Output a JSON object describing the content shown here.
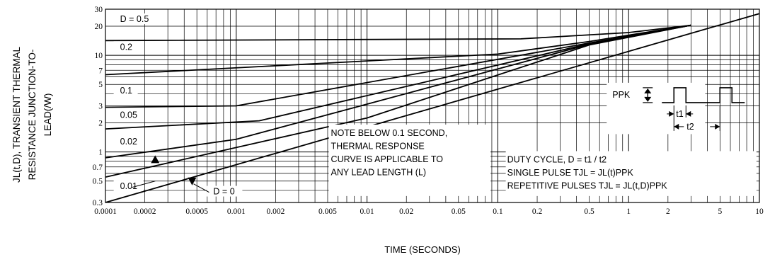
{
  "chart_data": {
    "type": "line",
    "xscale": "log",
    "yscale": "log",
    "xlim": [
      0.0001,
      10
    ],
    "ylim": [
      0.3,
      30
    ],
    "grid": true,
    "xlabel": "TIME (SECONDS)",
    "ylabel_lines": [
      "JL(t,D), TRANSIENT THERMAL",
      "RESISTANCE JUNCTION-TO-",
      "LEAD(/W)"
    ],
    "x_ticks": [
      {
        "v": 0.0001,
        "label": "0.0001"
      },
      {
        "v": 0.0002,
        "label": "0.0002"
      },
      {
        "v": 0.0005,
        "label": "0.0005"
      },
      {
        "v": 0.001,
        "label": "0.001"
      },
      {
        "v": 0.002,
        "label": "0.002"
      },
      {
        "v": 0.005,
        "label": "0.005"
      },
      {
        "v": 0.01,
        "label": "0.01"
      },
      {
        "v": 0.02,
        "label": "0.02"
      },
      {
        "v": 0.05,
        "label": "0.05"
      },
      {
        "v": 0.1,
        "label": "0.1"
      },
      {
        "v": 0.2,
        "label": "0.2"
      },
      {
        "v": 0.5,
        "label": "0.5"
      },
      {
        "v": 1,
        "label": "1"
      },
      {
        "v": 2,
        "label": "2"
      },
      {
        "v": 5,
        "label": "5"
      },
      {
        "v": 10,
        "label": "10"
      }
    ],
    "y_ticks": [
      {
        "v": 0.3,
        "label": "0.3"
      },
      {
        "v": 0.5,
        "label": "0.5"
      },
      {
        "v": 0.7,
        "label": "0.7"
      },
      {
        "v": 1,
        "label": "1"
      },
      {
        "v": 2,
        "label": "2"
      },
      {
        "v": 3,
        "label": "3"
      },
      {
        "v": 5,
        "label": "5"
      },
      {
        "v": 7,
        "label": "7"
      },
      {
        "v": 10,
        "label": "10"
      },
      {
        "v": 20,
        "label": "20"
      },
      {
        "v": 30,
        "label": "30"
      }
    ],
    "series": [
      {
        "name": "D = 0.5",
        "x": [
          0.0001,
          0.15,
          1.0,
          3.0
        ],
        "y": [
          14.2,
          14.8,
          17.2,
          20.5
        ]
      },
      {
        "name": "0.2",
        "x": [
          0.0001,
          0.1,
          0.5,
          3.0
        ],
        "y": [
          6.3,
          10.3,
          13.9,
          20.5
        ]
      },
      {
        "name": "0.1",
        "x": [
          0.0001,
          0.001,
          0.5,
          3.0
        ],
        "y": [
          2.9,
          3.0,
          13.4,
          20.5
        ]
      },
      {
        "name": "0.05",
        "x": [
          0.0001,
          0.0015,
          0.5,
          3.0
        ],
        "y": [
          1.73,
          2.1,
          13.2,
          20.5
        ]
      },
      {
        "name": "0.02",
        "x": [
          0.0001,
          0.001,
          0.5,
          3.0
        ],
        "y": [
          0.87,
          1.35,
          13.0,
          20.5
        ]
      },
      {
        "name": "0.01",
        "x": [
          0.0001,
          0.01,
          0.5,
          3.0
        ],
        "y": [
          0.55,
          2.25,
          12.8,
          20.5
        ]
      },
      {
        "name": "D = 0",
        "x": [
          0.0001,
          10.0
        ],
        "y": [
          0.3,
          27.0
        ]
      }
    ],
    "curve_labels": [
      {
        "text": "D = 0.5",
        "lx": 0.00012,
        "ly": 22.5
      },
      {
        "text": "0.2",
        "lx": 0.00012,
        "ly": 11.6
      },
      {
        "text": "0.1",
        "lx": 0.00012,
        "ly": 4.1
      },
      {
        "text": "0.05",
        "lx": 0.00012,
        "ly": 2.3
      },
      {
        "text": "0.02",
        "lx": 0.00012,
        "ly": 1.22
      },
      {
        "text": "0.01",
        "lx": 0.00012,
        "ly": 0.42
      },
      {
        "text": "D = 0",
        "lx": 0.00062,
        "ly": 0.37
      }
    ],
    "note_lines": [
      "NOTE BELOW 0.1 SECOND,",
      "THERMAL RESPONSE",
      "CURVE IS APPLICABLE TO",
      "ANY LEAD LENGTH (L)"
    ],
    "duty_lines": [
      "DUTY CYCLE, D = t1 / t2",
      "SINGLE PULSE     TJL =      JL(t)PPK",
      "REPETITIVE PULSES     TJL =       JL(t,D)PPK"
    ],
    "pulse_inset": {
      "ppk": "PPK",
      "t1": "t1",
      "t2": "t2"
    }
  }
}
